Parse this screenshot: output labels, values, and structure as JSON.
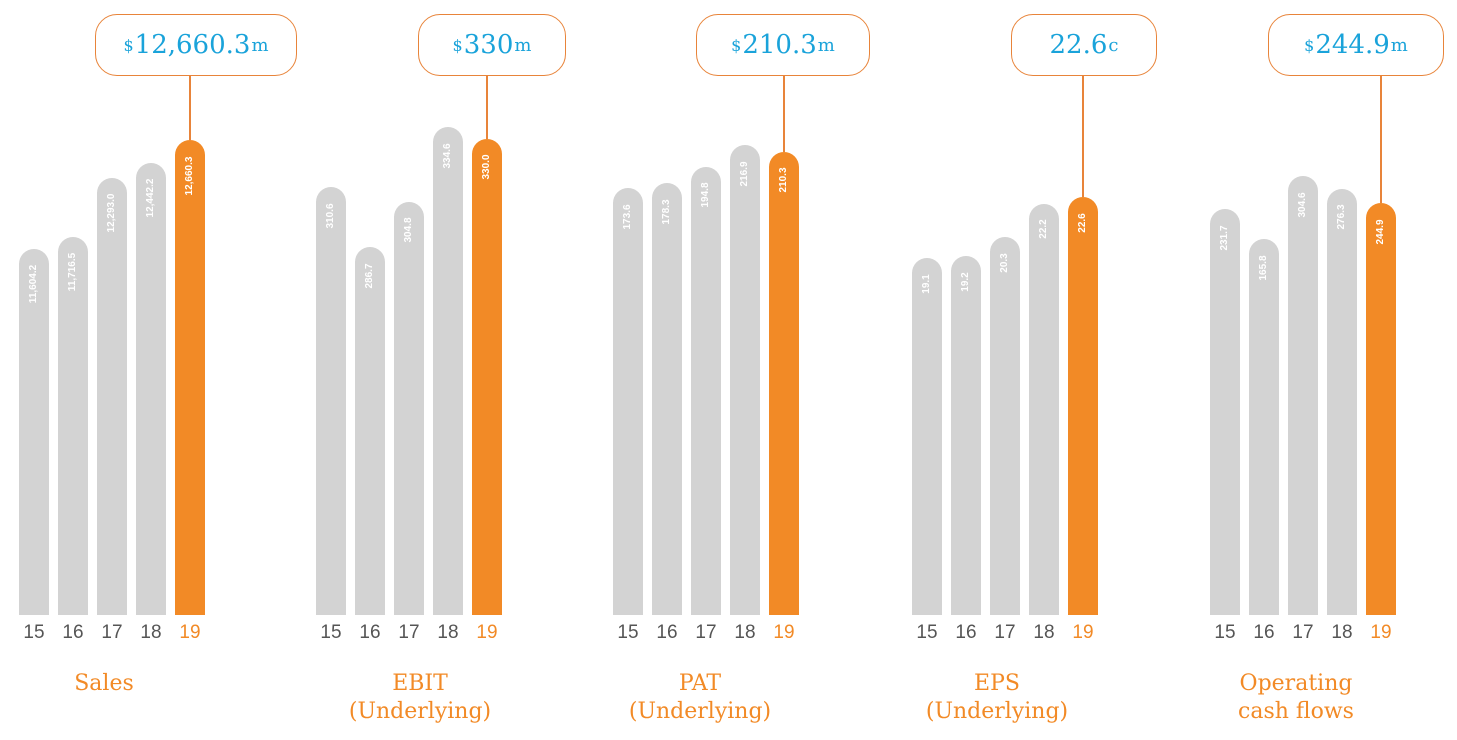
{
  "colors": {
    "bar_past": "#d3d3d3",
    "bar_current": "#f28a26",
    "callout_text": "#1aa3da",
    "callout_border": "#e8843a",
    "title": "#f28a26",
    "year_past": "#555555"
  },
  "chart_data": [
    {
      "type": "bar",
      "title": "Sales",
      "headline": {
        "prefix": "$",
        "value": "12,660.3",
        "unit": "m"
      },
      "categories": [
        "15",
        "16",
        "17",
        "18",
        "19"
      ],
      "values": [
        11604.2,
        11716.5,
        12293.0,
        12442.2,
        12660.3
      ],
      "labels": [
        "11,604.2",
        "11,716.5",
        "12,293.0",
        "12,442.2",
        "12,660.3"
      ]
    },
    {
      "type": "bar",
      "title": "EBIT\n(Underlying)",
      "headline": {
        "prefix": "$",
        "value": "330",
        "unit": "m"
      },
      "categories": [
        "15",
        "16",
        "17",
        "18",
        "19"
      ],
      "values": [
        310.6,
        286.7,
        304.8,
        334.6,
        330.0
      ],
      "labels": [
        "310.6",
        "286.7",
        "304.8",
        "334.6",
        "330.0"
      ]
    },
    {
      "type": "bar",
      "title": "PAT\n(Underlying)",
      "headline": {
        "prefix": "$",
        "value": "210.3",
        "unit": "m"
      },
      "categories": [
        "15",
        "16",
        "17",
        "18",
        "19"
      ],
      "values": [
        173.6,
        178.3,
        194.8,
        216.9,
        210.3
      ],
      "labels": [
        "173.6",
        "178.3",
        "194.8",
        "216.9",
        "210.3"
      ]
    },
    {
      "type": "bar",
      "title": "EPS\n(Underlying)",
      "headline": {
        "prefix": "",
        "value": "22.6",
        "unit": "c"
      },
      "categories": [
        "15",
        "16",
        "17",
        "18",
        "19"
      ],
      "values": [
        19.1,
        19.2,
        20.3,
        22.2,
        22.6
      ],
      "labels": [
        "19.1",
        "19.2",
        "20.3",
        "22.2",
        "22.6"
      ]
    },
    {
      "type": "bar",
      "title": "Operating\ncash flows",
      "headline": {
        "prefix": "$",
        "value": "244.9",
        "unit": "m"
      },
      "categories": [
        "15",
        "16",
        "17",
        "18",
        "19"
      ],
      "values": [
        231.7,
        165.8,
        304.6,
        276.3,
        244.9
      ],
      "labels": [
        "231.7",
        "165.8",
        "304.6",
        "276.3",
        "244.9"
      ]
    }
  ]
}
